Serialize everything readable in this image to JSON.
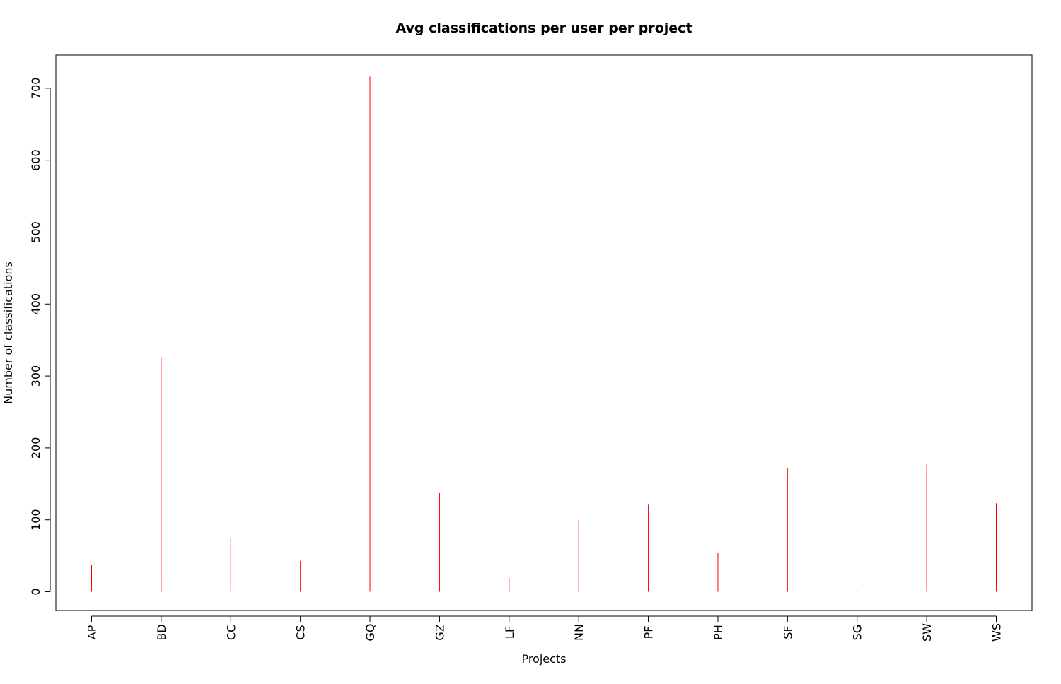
{
  "chart_data": {
    "type": "bar",
    "title": "Avg classifications per user per project",
    "xlabel": "Projects",
    "ylabel": "Number of classifications",
    "categories": [
      "AP",
      "BD",
      "CC",
      "CS",
      "GQ",
      "GZ",
      "LF",
      "NN",
      "PF",
      "PH",
      "SF",
      "SG",
      "SW",
      "WS"
    ],
    "values": [
      38,
      326,
      75,
      43,
      716,
      137,
      19,
      99,
      122,
      54,
      172,
      2,
      177,
      123
    ],
    "yticks": [
      "0",
      "100",
      "200",
      "300",
      "400",
      "500",
      "600",
      "700"
    ],
    "ylim": [
      -26,
      746
    ],
    "bar_color": "#ff0000",
    "grid": false,
    "legend": "none"
  }
}
